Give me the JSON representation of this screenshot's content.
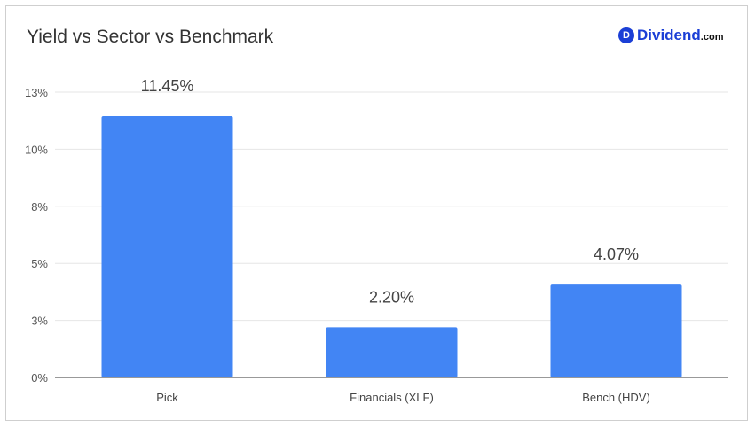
{
  "title": "Yield vs Sector vs Benchmark",
  "brand": {
    "badge": "D",
    "name": "Dividend",
    "suffix": ".com"
  },
  "colors": {
    "bar": "#4285f4",
    "grid": "#e6e6e6",
    "axis": "#333333",
    "brand": "#1b3fd6"
  },
  "chart_data": {
    "type": "bar",
    "title": "Yield vs Sector vs Benchmark",
    "xlabel": "",
    "ylabel": "",
    "categories": [
      "Pick",
      "Financials (XLF)",
      "Bench (HDV)"
    ],
    "values": [
      11.45,
      2.2,
      4.07
    ],
    "data_labels": [
      "11.45%",
      "2.20%",
      "4.07%"
    ],
    "ylim": [
      0,
      12.5
    ],
    "y_ticks": [
      0,
      2.5,
      5,
      7.5,
      10,
      12.5
    ],
    "y_tick_labels": [
      "0%",
      "3%",
      "5%",
      "8%",
      "10%",
      "13%"
    ],
    "grid": true,
    "legend": "none"
  }
}
